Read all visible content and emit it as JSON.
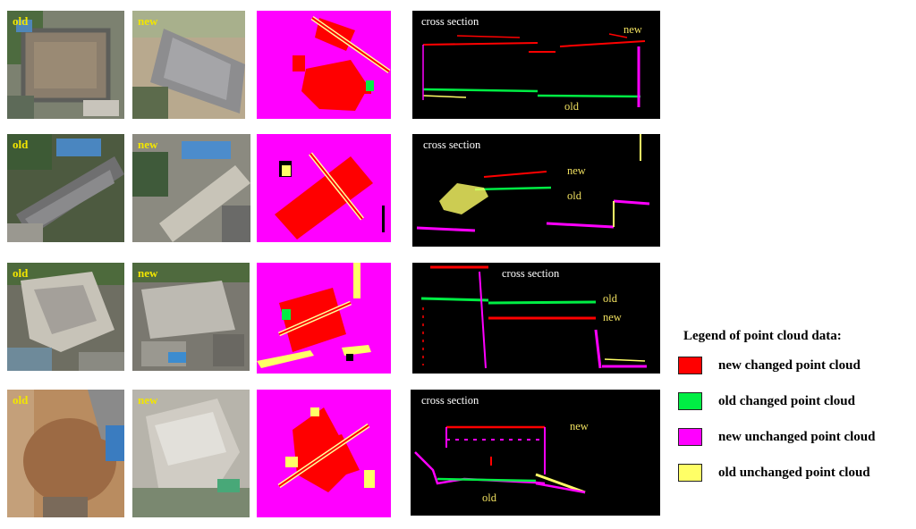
{
  "colors": {
    "new_changed": "#ff0000",
    "old_changed": "#00ee44",
    "new_unchanged": "#ff00ff",
    "old_unchanged": "#ffff66",
    "label_yellow": "#f2e600"
  },
  "rows": [
    {
      "old_label": "old",
      "new_label": "new",
      "section_title": "cross section",
      "section_new": "new",
      "section_old": "old"
    },
    {
      "old_label": "old",
      "new_label": "new",
      "section_title": "cross section",
      "section_new": "new",
      "section_old": "old"
    },
    {
      "old_label": "old",
      "new_label": "new",
      "section_title": "cross section",
      "section_new": "new",
      "section_old": "old"
    },
    {
      "old_label": "old",
      "new_label": "new",
      "section_title": "cross section",
      "section_new": "new",
      "section_old": "old"
    }
  ],
  "legend": {
    "title": "Legend of point cloud data:",
    "items": [
      {
        "label": "new changed point cloud",
        "color": "#ff0000"
      },
      {
        "label": "old changed point cloud",
        "color": "#00ee44"
      },
      {
        "label": "new unchanged point cloud",
        "color": "#ff00ff"
      },
      {
        "label": "old unchanged point cloud",
        "color": "#ffff66"
      }
    ]
  }
}
